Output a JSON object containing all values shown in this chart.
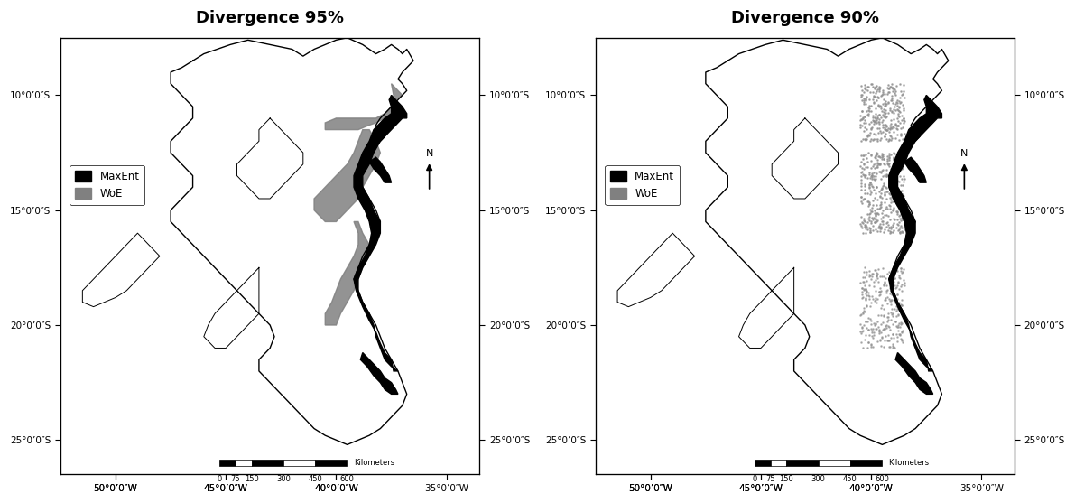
{
  "title_left": "Divergence 95%",
  "title_right": "Divergence 90%",
  "title_fontsize": 13,
  "title_fontweight": "bold",
  "background_color": "#ffffff",
  "figure_size": [
    11.91,
    5.57
  ],
  "dpi": 100,
  "xlim": [
    -52.5,
    -33.5
  ],
  "ylim": [
    -26.5,
    -7.5
  ],
  "xticks": [
    -50,
    -45,
    -40
  ],
  "yticks": [
    -10,
    -15,
    -20,
    -25
  ],
  "x_tick_labels_top": [
    "50°0’0″W",
    "45°0’0″W",
    "40°0’0″W"
  ],
  "x_tick_labels_bottom": [
    "50°0’0″W",
    "45°0’0″W",
    "40°0’0″W",
    "35°0’0″W"
  ],
  "xticks_bottom": [
    -50,
    -45,
    -40,
    -35
  ],
  "y_tick_labels": [
    "10°0’0″S",
    "15°0’0″S",
    "20°0’0″S",
    "25°0’0″S"
  ],
  "legend_maxent_color": "#000000",
  "legend_woe_color": "#808080",
  "legend_labels": [
    "MaxEnt",
    "WoE"
  ],
  "scalebar_label": "Kilometers"
}
